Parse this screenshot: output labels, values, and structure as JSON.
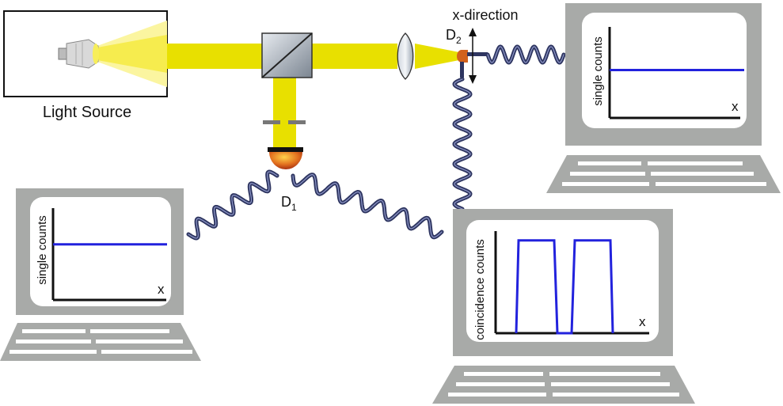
{
  "labels": {
    "light_source": "Light Source",
    "x_direction": "x-direction",
    "detector1": {
      "letter": "D",
      "sub": "1"
    },
    "detector2": {
      "letter": "D",
      "sub": "2"
    }
  },
  "monitors": {
    "right": {
      "ylabel": "single counts",
      "xlabel": "x",
      "chart_data": {
        "type": "line",
        "series": [
          {
            "values": [
              1,
              1
            ]
          }
        ],
        "ylim": [
          0,
          1.9
        ]
      }
    },
    "left": {
      "ylabel": "single counts",
      "xlabel": "x",
      "chart_data": {
        "type": "line",
        "series": [
          {
            "values": [
              1,
              1
            ]
          }
        ],
        "ylim": [
          0,
          1.65
        ]
      }
    },
    "center": {
      "ylabel": "coincidence counts",
      "xlabel": "x",
      "chart_data": {
        "type": "line",
        "series": [
          {
            "pattern": "two rectangular peaks",
            "values": [
              0,
              1,
              1,
              0,
              0,
              1,
              1,
              0
            ]
          }
        ],
        "ylim": [
          0,
          1.1
        ]
      }
    }
  },
  "colors": {
    "beam": "#e8e000",
    "fiber": "#2e3560",
    "plot_line": "#2222dd",
    "monitor_frame": "#a8aaa8",
    "detector": "#d2611c"
  }
}
